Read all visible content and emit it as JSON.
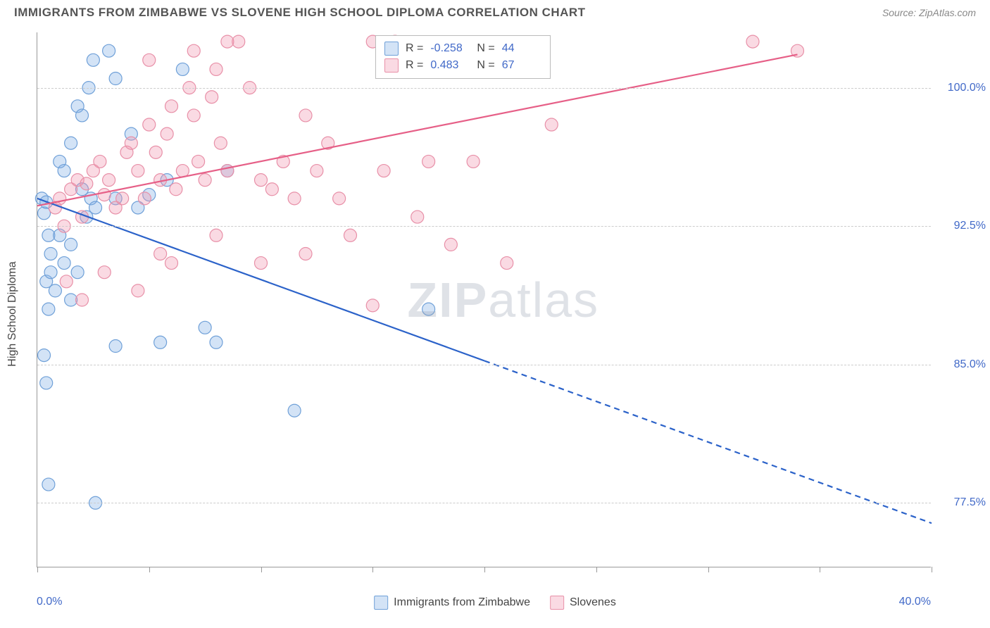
{
  "title": "IMMIGRANTS FROM ZIMBABWE VS SLOVENE HIGH SCHOOL DIPLOMA CORRELATION CHART",
  "source": "Source: ZipAtlas.com",
  "y_axis_label": "High School Diploma",
  "x_min_label": "0.0%",
  "x_max_label": "40.0%",
  "watermark_bold": "ZIP",
  "watermark_rest": "atlas",
  "chart": {
    "type": "scatter",
    "xlim": [
      0,
      40
    ],
    "ylim": [
      74,
      103
    ],
    "y_ticks": [
      77.5,
      85.0,
      92.5,
      100.0
    ],
    "y_tick_labels": [
      "77.5%",
      "85.0%",
      "92.5%",
      "100.0%"
    ],
    "x_ticks": [
      0,
      5,
      10,
      15,
      20,
      25,
      30,
      35,
      40
    ],
    "grid_color": "#cccccc",
    "background_color": "#ffffff",
    "axis_color": "#999999",
    "marker_radius": 9,
    "marker_stroke_width": 1.2,
    "line_width": 2.2,
    "series": [
      {
        "name": "Immigrants from Zimbabwe",
        "color_fill": "rgba(130,175,230,0.35)",
        "color_stroke": "#6fa0d8",
        "line_color": "#2b62c9",
        "r_value": "-0.258",
        "n_value": "44",
        "trend": {
          "x1": 0,
          "y1": 94.0,
          "x2": 20,
          "y2": 85.2,
          "dash_from_x": 20,
          "x3": 40,
          "y3": 76.4
        },
        "points": [
          [
            0.2,
            94.0
          ],
          [
            0.3,
            93.2
          ],
          [
            0.4,
            93.8
          ],
          [
            0.5,
            92.0
          ],
          [
            0.6,
            91.0
          ],
          [
            0.4,
            89.5
          ],
          [
            0.5,
            88.0
          ],
          [
            1.0,
            96.0
          ],
          [
            1.2,
            95.5
          ],
          [
            1.5,
            97.0
          ],
          [
            1.8,
            99.0
          ],
          [
            2.0,
            98.5
          ],
          [
            2.3,
            100.0
          ],
          [
            2.5,
            101.5
          ],
          [
            2.0,
            94.5
          ],
          [
            2.2,
            93.0
          ],
          [
            2.4,
            94.0
          ],
          [
            2.6,
            93.5
          ],
          [
            3.2,
            102.0
          ],
          [
            3.5,
            100.5
          ],
          [
            1.0,
            92.0
          ],
          [
            1.2,
            90.5
          ],
          [
            0.8,
            89.0
          ],
          [
            0.6,
            90.0
          ],
          [
            1.5,
            88.5
          ],
          [
            0.3,
            85.5
          ],
          [
            0.4,
            84.0
          ],
          [
            1.5,
            91.5
          ],
          [
            1.8,
            90.0
          ],
          [
            0.5,
            78.5
          ],
          [
            2.6,
            77.5
          ],
          [
            3.5,
            86.0
          ],
          [
            5.5,
            86.2
          ],
          [
            7.5,
            87.0
          ],
          [
            8.0,
            86.2
          ],
          [
            11.5,
            82.5
          ],
          [
            3.5,
            94.0
          ],
          [
            4.5,
            93.5
          ],
          [
            5.0,
            94.2
          ],
          [
            5.8,
            95.0
          ],
          [
            6.5,
            101.0
          ],
          [
            17.5,
            88.0
          ],
          [
            8.5,
            95.5
          ],
          [
            4.2,
            97.5
          ]
        ]
      },
      {
        "name": "Slovenes",
        "color_fill": "rgba(240,150,175,0.35)",
        "color_stroke": "#e890a8",
        "line_color": "#e65f87",
        "r_value": "0.483",
        "n_value": "67",
        "trend": {
          "x1": 0,
          "y1": 93.6,
          "x2": 34,
          "y2": 101.8
        },
        "points": [
          [
            0.8,
            93.5
          ],
          [
            1.0,
            94.0
          ],
          [
            1.2,
            92.5
          ],
          [
            1.5,
            94.5
          ],
          [
            1.8,
            95.0
          ],
          [
            2.0,
            93.0
          ],
          [
            2.2,
            94.8
          ],
          [
            2.5,
            95.5
          ],
          [
            2.8,
            96.0
          ],
          [
            3.0,
            94.2
          ],
          [
            3.2,
            95.0
          ],
          [
            3.5,
            93.5
          ],
          [
            3.8,
            94.0
          ],
          [
            4.0,
            96.5
          ],
          [
            4.2,
            97.0
          ],
          [
            4.5,
            95.5
          ],
          [
            4.8,
            94.0
          ],
          [
            5.0,
            98.0
          ],
          [
            5.3,
            96.5
          ],
          [
            5.5,
            95.0
          ],
          [
            5.8,
            97.5
          ],
          [
            6.0,
            99.0
          ],
          [
            6.2,
            94.5
          ],
          [
            6.5,
            95.5
          ],
          [
            6.8,
            100.0
          ],
          [
            7.0,
            98.5
          ],
          [
            7.2,
            96.0
          ],
          [
            7.5,
            95.0
          ],
          [
            7.8,
            99.5
          ],
          [
            8.0,
            101.0
          ],
          [
            8.2,
            97.0
          ],
          [
            8.5,
            95.5
          ],
          [
            9.0,
            102.5
          ],
          [
            9.5,
            100.0
          ],
          [
            10.0,
            95.0
          ],
          [
            10.5,
            94.5
          ],
          [
            11.0,
            96.0
          ],
          [
            11.5,
            94.0
          ],
          [
            12.0,
            98.5
          ],
          [
            12.5,
            95.5
          ],
          [
            13.0,
            97.0
          ],
          [
            13.5,
            94.0
          ],
          [
            14.0,
            92.0
          ],
          [
            15.0,
            102.5
          ],
          [
            15.5,
            95.5
          ],
          [
            16.0,
            102.5
          ],
          [
            17.0,
            93.0
          ],
          [
            17.5,
            96.0
          ],
          [
            18.5,
            91.5
          ],
          [
            19.5,
            96.0
          ],
          [
            21.0,
            90.5
          ],
          [
            23.0,
            98.0
          ],
          [
            32.0,
            102.5
          ],
          [
            34.0,
            102.0
          ],
          [
            1.3,
            89.5
          ],
          [
            2.0,
            88.5
          ],
          [
            3.0,
            90.0
          ],
          [
            4.5,
            89.0
          ],
          [
            5.5,
            91.0
          ],
          [
            6.0,
            90.5
          ],
          [
            8.0,
            92.0
          ],
          [
            10.0,
            90.5
          ],
          [
            12.0,
            91.0
          ],
          [
            5.0,
            101.5
          ],
          [
            7.0,
            102.0
          ],
          [
            8.5,
            102.5
          ],
          [
            15.0,
            88.2
          ]
        ]
      }
    ]
  },
  "stats_box": {
    "r_label": "R =",
    "n_label": "N ="
  },
  "bottom_legend": {
    "item1": "Immigrants from Zimbabwe",
    "item2": "Slovenes"
  }
}
